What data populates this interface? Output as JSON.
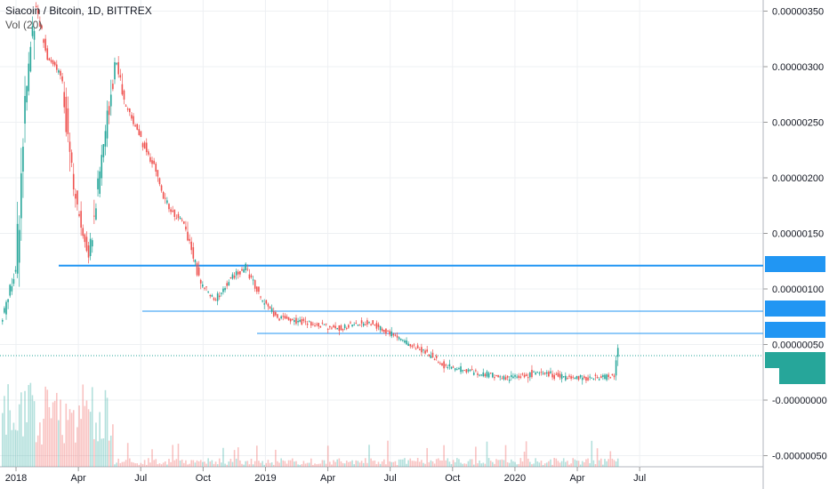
{
  "legend": {
    "symbol": "Siacoin / Bitcoin, 1D, BITTREX",
    "volume": "Vol (20)"
  },
  "colors": {
    "up": "#26a69a",
    "down": "#ef5350",
    "level_line": "#2196f3",
    "last_price_line": "#26a69a",
    "grid": "#eef0f3",
    "axis_text": "#131722"
  },
  "chart_data": {
    "type": "candlestick",
    "title": "Siacoin / Bitcoin, 1D, BITTREX",
    "ylim": [
      -6e-07,
      3.6e-06
    ],
    "y_ticks": [
      {
        "value": 3.5e-06,
        "label": "0.00000350"
      },
      {
        "value": 3e-06,
        "label": "0.00000300"
      },
      {
        "value": 2.5e-06,
        "label": "0.00000250"
      },
      {
        "value": 2e-06,
        "label": "0.00000200"
      },
      {
        "value": 1.5e-06,
        "label": "0.00000150"
      },
      {
        "value": 1e-06,
        "label": "0.00000100"
      },
      {
        "value": 5e-07,
        "label": "0.00000050"
      },
      {
        "value": 0.0,
        "label": "-0.00000000"
      },
      {
        "value": -5e-07,
        "label": "-0.00000050"
      }
    ],
    "x_ticks": [
      "2018",
      "Apr",
      "Jul",
      "Oct",
      "2019",
      "Apr",
      "Jul",
      "Oct",
      "2020",
      "Apr",
      "Jul"
    ],
    "horizontal_levels": [
      1.21e-06,
      8e-07,
      6e-07
    ],
    "last_price": 4e-07,
    "price_path": [
      [
        0,
        7e-07
      ],
      [
        0.02,
        1.2e-06
      ],
      [
        0.03,
        2.5e-06
      ],
      [
        0.045,
        3.6e-06
      ],
      [
        0.06,
        3.1e-06
      ],
      [
        0.08,
        2.9e-06
      ],
      [
        0.1,
        1.7e-06
      ],
      [
        0.115,
        1.3e-06
      ],
      [
        0.13,
        2.1e-06
      ],
      [
        0.15,
        3.1e-06
      ],
      [
        0.16,
        2.7e-06
      ],
      [
        0.18,
        2.4e-06
      ],
      [
        0.2,
        2.1e-06
      ],
      [
        0.22,
        1.7e-06
      ],
      [
        0.24,
        1.6e-06
      ],
      [
        0.26,
        1.05e-06
      ],
      [
        0.28,
        9e-07
      ],
      [
        0.3,
        1.1e-06
      ],
      [
        0.32,
        1.2e-06
      ],
      [
        0.34,
        9e-07
      ],
      [
        0.36,
        7.5e-07
      ],
      [
        0.4,
        7e-07
      ],
      [
        0.44,
        6.5e-07
      ],
      [
        0.48,
        7e-07
      ],
      [
        0.52,
        5.5e-07
      ],
      [
        0.56,
        4e-07
      ],
      [
        0.58,
        3e-07
      ],
      [
        0.62,
        2.5e-07
      ],
      [
        0.66,
        2e-07
      ],
      [
        0.7,
        2.5e-07
      ],
      [
        0.74,
        2e-07
      ],
      [
        0.78,
        2e-07
      ],
      [
        0.8,
        2.2e-07
      ],
      [
        0.805,
        4e-07
      ]
    ]
  }
}
